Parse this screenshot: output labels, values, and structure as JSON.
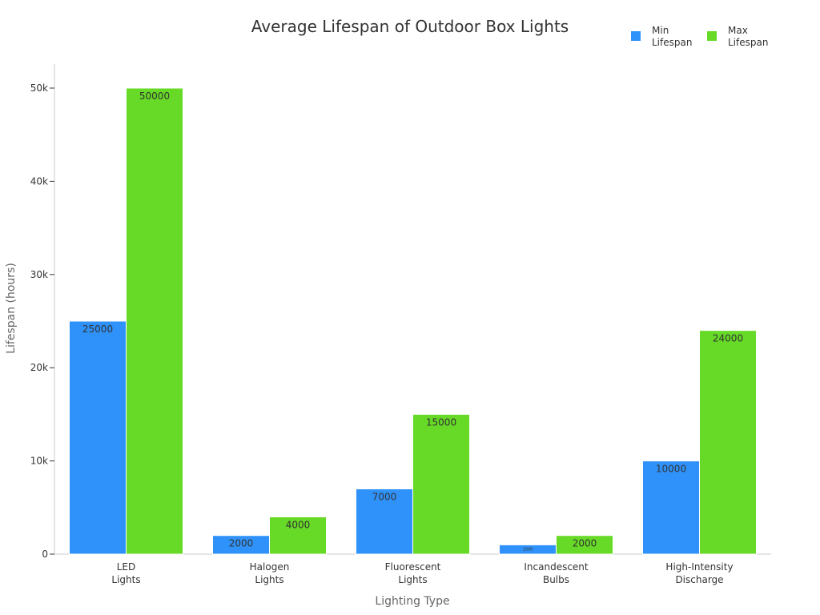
{
  "chart_data": {
    "type": "bar",
    "title": "Average Lifespan of Outdoor Box Lights",
    "xlabel": "Lighting Type",
    "ylabel": "Lifespan (hours)",
    "categories": [
      [
        "LED",
        "Lights"
      ],
      [
        "Halogen",
        "Lights"
      ],
      [
        "Fluorescent",
        "Lights"
      ],
      [
        "Incandescent",
        "Bulbs"
      ],
      [
        "High-Intensity",
        "Discharge"
      ]
    ],
    "series": [
      {
        "name": [
          "Min",
          "Lifespan"
        ],
        "color": "#2f92fa",
        "values": [
          25000,
          2000,
          7000,
          1000,
          10000
        ]
      },
      {
        "name": [
          "Max",
          "Lifespan"
        ],
        "color": "#66da26",
        "values": [
          50000,
          4000,
          15000,
          2000,
          24000
        ]
      }
    ],
    "ylim": [
      0,
      52500
    ],
    "yticks": [
      0,
      10000,
      20000,
      30000,
      40000,
      50000
    ],
    "ytick_labels": [
      "0",
      "10k",
      "20k",
      "30k",
      "40k",
      "50k"
    ],
    "legend_position": "top-right",
    "grid": false
  }
}
